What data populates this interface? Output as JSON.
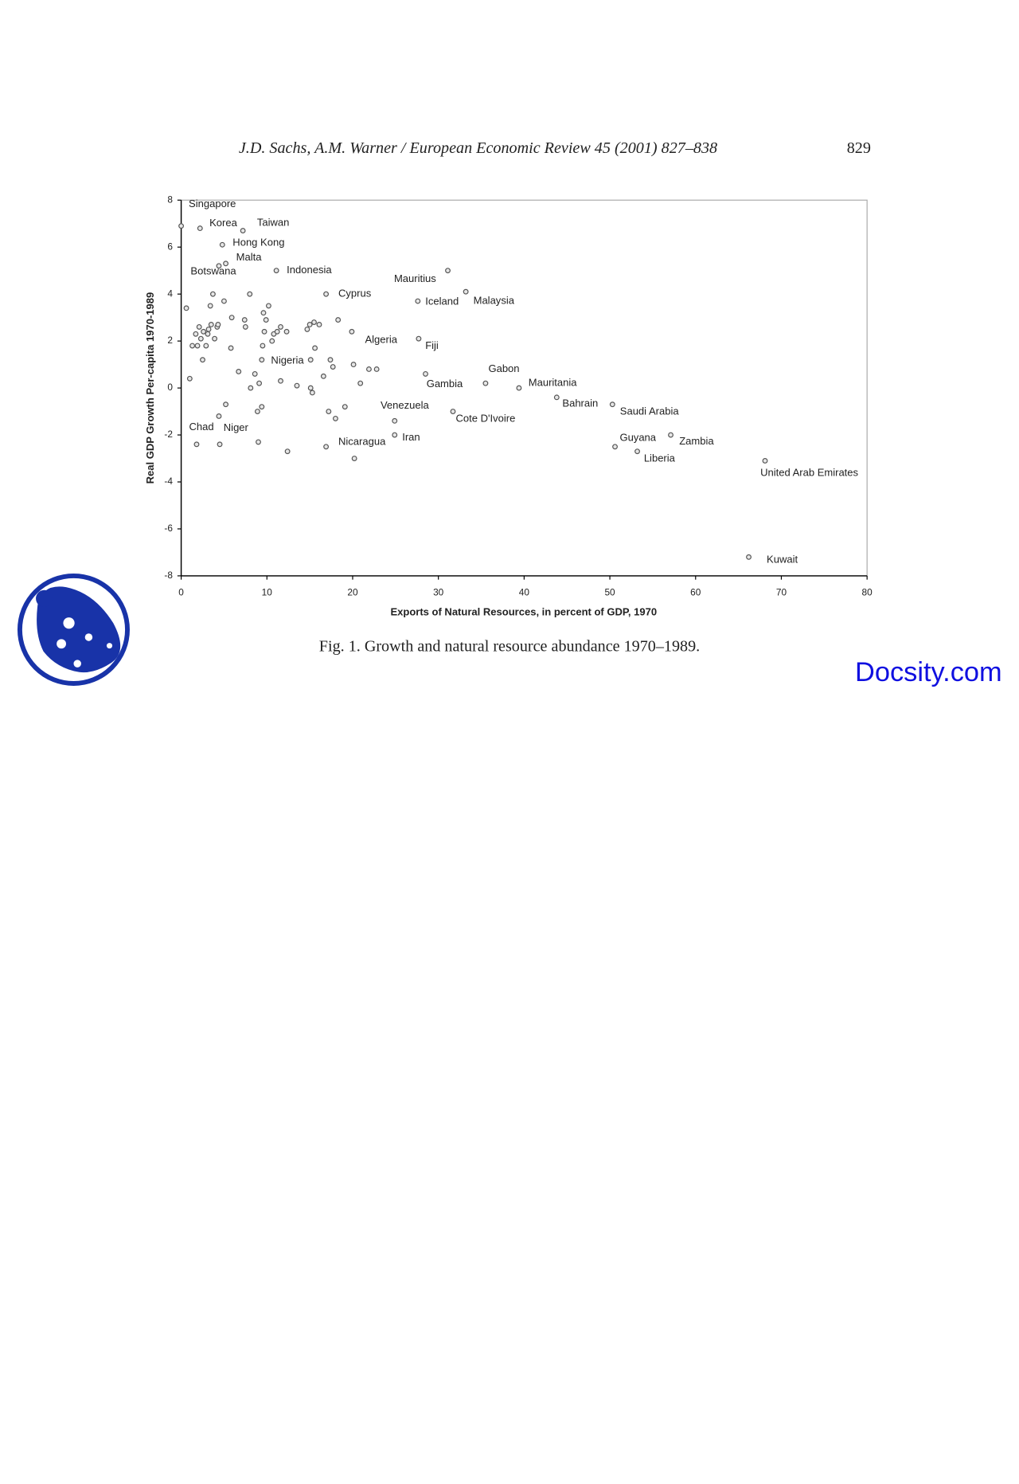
{
  "header": {
    "citation": "J.D. Sachs, A.M. Warner / European Economic Review 45 (2001) 827–838",
    "page_number": "829"
  },
  "chart_data": {
    "type": "scatter",
    "xlabel": "Exports of Natural Resources, in percent of GDP, 1970",
    "ylabel": "Real GDP Growth Per-capita 1970-1989",
    "xlim": [
      0,
      80
    ],
    "ylim": [
      -8,
      8
    ],
    "xticks": [
      0,
      10,
      20,
      30,
      40,
      50,
      60,
      70,
      80
    ],
    "yticks": [
      -8,
      -6,
      -4,
      -2,
      0,
      2,
      4,
      6,
      8
    ],
    "series": [
      {
        "color": "#555555",
        "labels": [
          "Singapore",
          "Korea",
          "Taiwan",
          "Hong Kong",
          "Malta",
          "Botswana",
          "Indonesia",
          "Cyprus",
          "Mauritius",
          "Malaysia",
          "Iceland",
          "Algeria",
          "Fiji",
          "Nigeria",
          "Gabon",
          "Gambia",
          "Mauritania",
          "Bahrain",
          "Saudi Arabia",
          "Venezuela",
          "Cote D'Ivoire",
          "Iran",
          "Nicaragua",
          "Chad",
          "Niger",
          "Guyana",
          "Zambia",
          "Liberia",
          "United Arab Emirates",
          "Kuwait",
          null,
          null,
          null,
          null,
          null,
          null,
          null,
          null,
          null,
          null,
          null,
          null,
          null,
          null,
          null,
          null,
          null,
          null,
          null,
          null,
          null,
          null,
          null,
          null,
          null,
          null,
          null,
          null,
          null,
          null,
          null,
          null,
          null,
          null,
          null,
          null,
          null,
          null,
          null,
          null,
          null,
          null,
          null,
          null,
          null,
          null,
          null,
          null,
          null,
          null,
          null,
          null,
          null,
          null,
          null,
          null,
          null,
          null,
          null,
          null,
          null,
          null,
          null,
          null
        ],
        "x": [
          0.0,
          2.2,
          7.2,
          4.8,
          5.2,
          4.4,
          11.1,
          16.9,
          31.1,
          33.2,
          27.6,
          19.9,
          27.7,
          15.1,
          35.5,
          28.5,
          39.4,
          43.8,
          50.3,
          24.9,
          31.7,
          24.9,
          16.9,
          1.8,
          4.5,
          50.6,
          57.1,
          53.2,
          68.1,
          66.2,
          0.6,
          1.0,
          1.3,
          1.7,
          1.9,
          2.1,
          2.3,
          2.5,
          2.6,
          2.9,
          3.1,
          3.2,
          3.4,
          3.5,
          3.7,
          3.9,
          4.2,
          4.3,
          4.4,
          5.0,
          5.2,
          5.8,
          5.9,
          6.7,
          7.4,
          7.5,
          8.0,
          8.1,
          8.6,
          8.9,
          9.1,
          9.4,
          9.0,
          9.4,
          9.6,
          9.5,
          9.7,
          9.9,
          10.2,
          10.6,
          10.8,
          11.2,
          11.6,
          11.6,
          12.3,
          12.4,
          13.5,
          14.7,
          15.0,
          15.1,
          15.3,
          15.5,
          15.6,
          16.1,
          16.6,
          17.2,
          17.4,
          17.7,
          18.0,
          18.3,
          19.1,
          20.1,
          20.2,
          20.9,
          21.9,
          22.8
        ],
        "values": [
          6.9,
          6.8,
          6.7,
          6.1,
          5.3,
          5.2,
          5.0,
          4.0,
          5.0,
          4.1,
          3.7,
          2.4,
          2.1,
          1.2,
          0.2,
          0.6,
          0.0,
          -0.4,
          -0.7,
          -1.4,
          -1.0,
          -2.0,
          -2.5,
          -2.4,
          -2.4,
          -2.5,
          -2.0,
          -2.7,
          -3.1,
          -7.2,
          3.4,
          0.4,
          1.8,
          2.3,
          1.8,
          2.6,
          2.1,
          1.2,
          2.4,
          1.8,
          2.3,
          2.5,
          3.5,
          2.7,
          4.0,
          2.1,
          2.6,
          2.7,
          -1.2,
          3.7,
          -0.7,
          1.7,
          3.0,
          0.7,
          2.9,
          2.6,
          4.0,
          0.0,
          0.6,
          -1.0,
          0.2,
          -0.8,
          -2.3,
          1.2,
          3.2,
          1.8,
          2.4,
          2.9,
          3.5,
          2.0,
          2.3,
          2.4,
          2.6,
          0.3,
          2.4,
          -2.7,
          0.1,
          2.5,
          2.7,
          0.0,
          -0.2,
          2.8,
          1.7,
          2.7,
          0.5,
          -1.0,
          1.2,
          0.9,
          -1.3,
          2.9,
          -0.8,
          1.0,
          -3.0,
          0.2,
          0.8,
          0.8
        ]
      }
    ]
  },
  "caption": "Fig. 1. Growth and natural resource abundance 1970–1989.",
  "watermark": "Docsity.com"
}
